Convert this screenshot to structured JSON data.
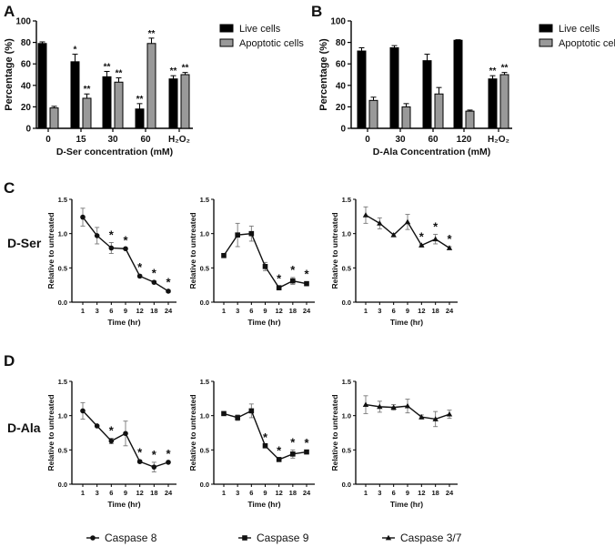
{
  "panel_labels": {
    "A": "A",
    "B": "B",
    "C": "C",
    "D": "D"
  },
  "row_labels": {
    "C": "D-Ser",
    "D": "D-Ala"
  },
  "legend_bottom": [
    "Caspase 8",
    "Caspase 9",
    "Caspase 3/7"
  ],
  "colors": {
    "live": "#000000",
    "apoptotic": "#999999",
    "line": "#111111",
    "error": "#777777"
  },
  "chart_data": [
    {
      "id": "A",
      "type": "bar",
      "xlabel": "D-Ser concentration (mM)",
      "ylabel": "Percentage (%)",
      "ylim": [
        0,
        100
      ],
      "yticks": [
        "0",
        "20",
        "40",
        "60",
        "80",
        "100"
      ],
      "categories": [
        "0",
        "15",
        "30",
        "60",
        "H₂O₂"
      ],
      "legend": [
        "Live cells",
        "Apoptotic cells"
      ],
      "series": [
        {
          "name": "Live cells",
          "values": [
            79,
            62,
            48,
            18,
            46
          ],
          "errors": [
            1.5,
            7,
            5,
            5,
            3
          ],
          "stars": [
            "",
            "*",
            "**",
            "**",
            "**"
          ]
        },
        {
          "name": "Apoptotic cells",
          "values": [
            19,
            28,
            43,
            79,
            50
          ],
          "errors": [
            1.5,
            4,
            4,
            5,
            2
          ],
          "stars": [
            "",
            "**",
            "**",
            "**",
            "**"
          ]
        }
      ]
    },
    {
      "id": "B",
      "type": "bar",
      "xlabel": "D-Ala Concentration (mM)",
      "ylabel": "Percentage (%)",
      "ylim": [
        0,
        100
      ],
      "yticks": [
        "0",
        "20",
        "40",
        "60",
        "80",
        "100"
      ],
      "categories": [
        "0",
        "30",
        "60",
        "120",
        "H₂O₂"
      ],
      "legend": [
        "Live cells",
        "Apoptotic cells"
      ],
      "series": [
        {
          "name": "Live cells",
          "values": [
            72,
            75,
            63,
            82,
            46
          ],
          "errors": [
            3,
            2,
            6,
            0.5,
            3
          ],
          "stars": [
            "",
            "",
            "",
            "",
            "**"
          ]
        },
        {
          "name": "Apoptotic cells",
          "values": [
            26,
            20,
            32,
            16,
            50
          ],
          "errors": [
            3,
            3,
            6,
            1,
            2
          ],
          "stars": [
            "",
            "",
            "",
            "",
            "**"
          ]
        }
      ]
    },
    {
      "id": "C1",
      "type": "line",
      "marker": "circle",
      "series_name": "Caspase 8",
      "xlabel": "Time (hr)",
      "ylabel": "Relative to untreated",
      "ylim": [
        0,
        1.5
      ],
      "yticks": [
        "0.0",
        "0.5",
        "1.0",
        "1.5"
      ],
      "x": [
        "1",
        "3",
        "6",
        "9",
        "12",
        "18",
        "24"
      ],
      "values": [
        1.24,
        0.97,
        0.79,
        0.78,
        0.38,
        0.29,
        0.16
      ],
      "errors": [
        0.13,
        0.12,
        0.08,
        0.01,
        0.02,
        0.02,
        0.02
      ],
      "stars": [
        "",
        "",
        "*",
        "*",
        "*",
        "*",
        "*"
      ]
    },
    {
      "id": "C2",
      "type": "line",
      "marker": "square",
      "series_name": "Caspase 9",
      "xlabel": "Time (hr)",
      "ylabel": "Relative to untreated",
      "ylim": [
        0,
        1.5
      ],
      "yticks": [
        "0.0",
        "0.5",
        "1.0",
        "1.5"
      ],
      "x": [
        "1",
        "3",
        "6",
        "9",
        "12",
        "18",
        "24"
      ],
      "values": [
        0.68,
        0.98,
        1.0,
        0.52,
        0.21,
        0.31,
        0.27
      ],
      "errors": [
        0.03,
        0.17,
        0.11,
        0.06,
        0.02,
        0.05,
        0.03
      ],
      "stars": [
        "",
        "",
        "",
        "",
        "*",
        "*",
        "*"
      ]
    },
    {
      "id": "C3",
      "type": "line",
      "marker": "triangle",
      "series_name": "Caspase 3/7",
      "xlabel": "Time (hr)",
      "ylabel": "Relative to untreated",
      "ylim": [
        0,
        1.5
      ],
      "yticks": [
        "0.0",
        "0.5",
        "1.0",
        "1.5"
      ],
      "x": [
        "1",
        "3",
        "6",
        "9",
        "12",
        "18",
        "24"
      ],
      "values": [
        1.27,
        1.15,
        0.98,
        1.17,
        0.83,
        0.92,
        0.79
      ],
      "errors": [
        0.12,
        0.08,
        0.02,
        0.11,
        0.01,
        0.07,
        0.02
      ],
      "stars": [
        "",
        "",
        "",
        "",
        "*",
        "*",
        "*"
      ]
    },
    {
      "id": "D1",
      "type": "line",
      "marker": "circle",
      "series_name": "Caspase 8",
      "xlabel": "Time (hr)",
      "ylabel": "Relative to untreated",
      "ylim": [
        0,
        1.5
      ],
      "yticks": [
        "0.0",
        "0.5",
        "1.0",
        "1.5"
      ],
      "x": [
        "1",
        "3",
        "6",
        "9",
        "12",
        "18",
        "24"
      ],
      "values": [
        1.07,
        0.85,
        0.63,
        0.74,
        0.33,
        0.25,
        0.32
      ],
      "errors": [
        0.12,
        0.01,
        0.04,
        0.18,
        0.02,
        0.07,
        0.01
      ],
      "stars": [
        "",
        "",
        "*",
        "",
        "*",
        "*",
        "*"
      ]
    },
    {
      "id": "D2",
      "type": "line",
      "marker": "square",
      "series_name": "Caspase 9",
      "xlabel": "Time (hr)",
      "ylabel": "Relative to untreated",
      "ylim": [
        0,
        1.5
      ],
      "yticks": [
        "0.0",
        "0.5",
        "1.0",
        "1.5"
      ],
      "x": [
        "1",
        "3",
        "6",
        "9",
        "12",
        "18",
        "24"
      ],
      "values": [
        1.03,
        0.97,
        1.07,
        0.56,
        0.36,
        0.44,
        0.47
      ],
      "errors": [
        0.01,
        0.04,
        0.1,
        0.01,
        0.02,
        0.06,
        0.02
      ],
      "stars": [
        "",
        "",
        "",
        "*",
        "*",
        "*",
        "*"
      ]
    },
    {
      "id": "D3",
      "type": "line",
      "marker": "triangle",
      "series_name": "Caspase 3/7",
      "xlabel": "Time (hr)",
      "ylabel": "Relative to untreated",
      "ylim": [
        0,
        1.5
      ],
      "yticks": [
        "0.0",
        "0.5",
        "1.0",
        "1.5"
      ],
      "x": [
        "1",
        "3",
        "6",
        "9",
        "12",
        "18",
        "24"
      ],
      "values": [
        1.16,
        1.13,
        1.12,
        1.14,
        0.98,
        0.95,
        1.02
      ],
      "errors": [
        0.13,
        0.08,
        0.04,
        0.1,
        0.03,
        0.11,
        0.06
      ],
      "stars": [
        "",
        "",
        "",
        "",
        "",
        "",
        ""
      ]
    }
  ]
}
